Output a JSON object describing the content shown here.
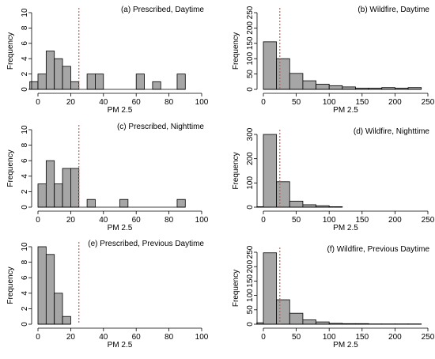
{
  "figure": {
    "panel_count": 6
  },
  "chart_data": [
    {
      "type": "histogram",
      "title": "(a) Prescribed, Daytime",
      "xlabel": "PM 2.5",
      "ylabel": "Frequency",
      "xlim": [
        0,
        100
      ],
      "ylim": [
        0,
        10
      ],
      "xticks": [
        0,
        20,
        40,
        60,
        80,
        100
      ],
      "yticks": [
        0,
        2,
        4,
        6,
        8,
        10
      ],
      "bin_width": 5,
      "bins_start": [
        -5,
        0,
        5,
        10,
        15,
        20,
        25,
        30,
        35,
        40,
        45,
        50,
        55,
        60,
        65,
        70,
        75,
        80,
        85
      ],
      "counts": [
        1,
        2,
        5,
        4,
        3,
        1,
        0,
        2,
        2,
        0,
        0,
        0,
        0,
        2,
        0,
        1,
        0,
        0,
        2
      ],
      "reference_line_x": 25
    },
    {
      "type": "histogram",
      "title": "(b) Wildfire, Daytime",
      "xlabel": "PM 2.5",
      "ylabel": "Frequency",
      "xlim": [
        0,
        250
      ],
      "ylim": [
        0,
        250
      ],
      "xticks": [
        0,
        50,
        100,
        150,
        200,
        250
      ],
      "yticks": [
        0,
        50,
        100,
        150,
        200,
        250
      ],
      "bin_width": 20,
      "bins_start": [
        0,
        20,
        40,
        60,
        80,
        100,
        120,
        140,
        160,
        180,
        200,
        220
      ],
      "counts": [
        155,
        100,
        52,
        28,
        17,
        12,
        8,
        4,
        4,
        6,
        4,
        6
      ],
      "reference_line_x": 25
    },
    {
      "type": "histogram",
      "title": "(c) Prescribed, Nighttime",
      "xlabel": "PM 2.5",
      "ylabel": "Frequency",
      "xlim": [
        0,
        100
      ],
      "ylim": [
        0,
        10
      ],
      "xticks": [
        0,
        20,
        40,
        60,
        80,
        100
      ],
      "yticks": [
        0,
        2,
        4,
        6,
        8,
        10
      ],
      "bin_width": 5,
      "bins_start": [
        0,
        5,
        10,
        15,
        20,
        25,
        30,
        35,
        40,
        45,
        50,
        55,
        60,
        65,
        70,
        75,
        80,
        85
      ],
      "counts": [
        3,
        6,
        3,
        5,
        5,
        0,
        1,
        0,
        0,
        0,
        1,
        0,
        0,
        0,
        0,
        0,
        0,
        1
      ],
      "reference_line_x": 25
    },
    {
      "type": "histogram",
      "title": "(d) Wildfire, Nighttime",
      "xlabel": "PM 2.5",
      "ylabel": "Frequency",
      "xlim": [
        0,
        250
      ],
      "ylim": [
        0,
        300
      ],
      "xticks": [
        0,
        50,
        100,
        150,
        200,
        250
      ],
      "yticks": [
        0,
        100,
        200,
        300
      ],
      "bin_width": 20,
      "bins_start": [
        -10,
        0,
        20,
        40,
        60,
        80,
        100
      ],
      "counts": [
        2,
        300,
        105,
        25,
        10,
        6,
        2
      ],
      "reference_line_x": 25
    },
    {
      "type": "histogram",
      "title": "(e) Prescribed, Previous Daytime",
      "xlabel": "PM 2.5",
      "ylabel": "Frequency",
      "xlim": [
        0,
        100
      ],
      "ylim": [
        0,
        10
      ],
      "xticks": [
        0,
        20,
        40,
        60,
        80,
        100
      ],
      "yticks": [
        0,
        2,
        4,
        6,
        8,
        10
      ],
      "bin_width": 5,
      "bins_start": [
        0,
        5,
        10,
        15
      ],
      "counts": [
        10,
        9,
        4,
        1
      ],
      "reference_line_x": 25
    },
    {
      "type": "histogram",
      "title": "(f) Wildfire, Previous Daytime",
      "xlabel": "PM 2.5",
      "ylabel": "Frequency",
      "xlim": [
        0,
        250
      ],
      "ylim": [
        0,
        250
      ],
      "xticks": [
        0,
        50,
        100,
        150,
        200,
        250
      ],
      "yticks": [
        0,
        50,
        100,
        150,
        200,
        250
      ],
      "bin_width": 20,
      "bins_start": [
        -10,
        0,
        20,
        40,
        60,
        80,
        100,
        120,
        140,
        160,
        180,
        200,
        220
      ],
      "counts": [
        5,
        248,
        85,
        38,
        15,
        8,
        3,
        2,
        2,
        1,
        1,
        1,
        1
      ],
      "reference_line_x": 25
    }
  ]
}
